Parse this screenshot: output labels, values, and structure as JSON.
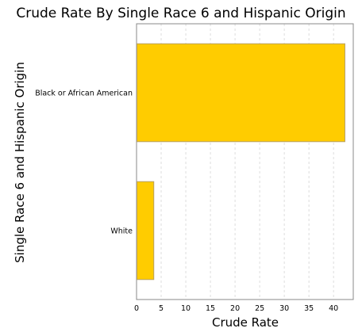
{
  "chart_data": {
    "type": "bar",
    "orientation": "horizontal",
    "title": "Crude Rate By Single Race 6 and Hispanic Origin",
    "xlabel": "Crude Rate",
    "ylabel": "Single Race 6 and Hispanic Origin",
    "categories": [
      "Black or African American",
      "White"
    ],
    "values": [
      42.3,
      3.5
    ],
    "xlim": [
      0,
      44
    ],
    "xticks": [
      0,
      5,
      10,
      15,
      20,
      25,
      30,
      35,
      40
    ],
    "grid": true,
    "legend": "none",
    "colors": {
      "bar": "#ffcc00",
      "bar_border": "#b8a060",
      "grid": "#dddddd",
      "frame": "#888888"
    }
  }
}
